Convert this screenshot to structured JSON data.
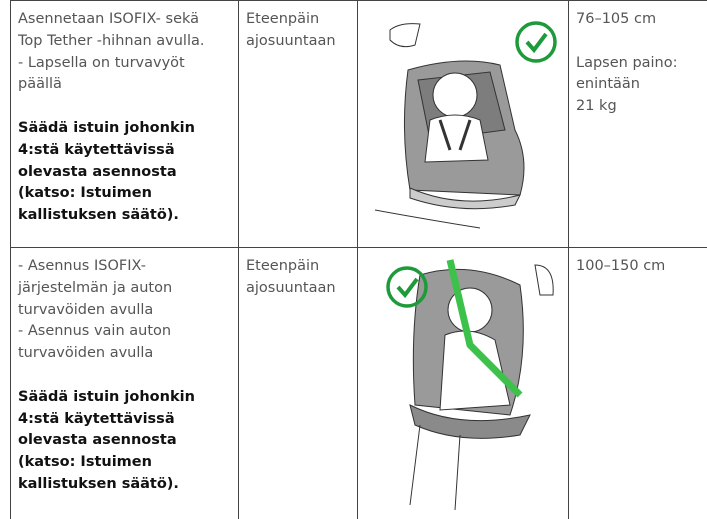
{
  "table": {
    "rows": [
      {
        "installation": [
          "Asennetaan ISOFIX- sekä",
          "Top Tether -hihnan avulla.",
          "- Lapsella on turvavyöt",
          "päällä"
        ],
        "note": [
          "Säädä istuin johonkin",
          "4:stä käytettävissä",
          "olevasta asennosta",
          "(katso: Istuimen",
          "kallistuksen säätö)."
        ],
        "direction": [
          "Eteenpäin",
          "ajosuuntaan"
        ],
        "height": "76–105 cm",
        "weight": [
          "Lapsen paino:",
          "enintään",
          "21 kg"
        ]
      },
      {
        "installation": [
          "- Asennus ISOFIX-",
          "järjestelmän ja auton",
          "turvavöiden avulla",
          "- Asennus vain auton",
          "turvavöiden avulla"
        ],
        "note": [
          "Säädä istuin johonkin",
          "4:stä käytettävissä",
          "olevasta asennosta",
          "(katso: Istuimen",
          "kallistuksen säätö)."
        ],
        "direction": [
          "Eteenpäin",
          "ajosuuntaan"
        ],
        "height": "100–150 cm"
      }
    ]
  }
}
